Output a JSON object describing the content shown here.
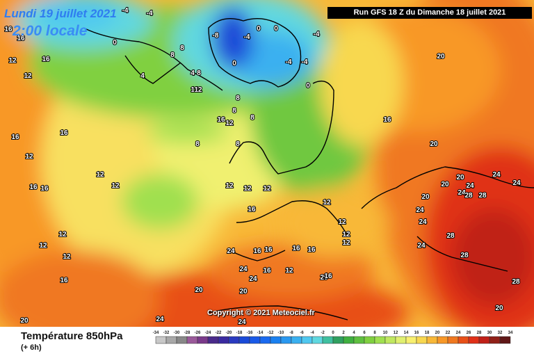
{
  "header": {
    "date": "Lundi 19 juillet 2021",
    "time": "2:00 locale",
    "run": "Run GFS 18 Z du Dimanche 18 juillet 2021"
  },
  "copyright": "Copyright © 2021 Meteociel.fr",
  "legend": {
    "title": "Température 850hPa",
    "subtitle": "(+ 6h)",
    "ticks": [
      "-34",
      "-32",
      "-30",
      "-28",
      "-26",
      "-24",
      "-22",
      "-20",
      "-18",
      "-16",
      "-14",
      "-12",
      "-10",
      "-8",
      "-6",
      "-4",
      "-2",
      "0",
      "2",
      "4",
      "6",
      "8",
      "10",
      "12",
      "14",
      "16",
      "18",
      "20",
      "22",
      "24",
      "26",
      "28",
      "30",
      "32",
      "34"
    ],
    "colors": [
      "#c8c8c8",
      "#a8a8a8",
      "#888888",
      "#9a5a9a",
      "#7a3a8a",
      "#4a2a8a",
      "#3a2aa0",
      "#2a3ac0",
      "#1a4ad8",
      "#1a5ae8",
      "#1a6af0",
      "#1a80f0",
      "#2a98f0",
      "#3ab0f0",
      "#50c8f0",
      "#60d8e0",
      "#40c0a0",
      "#30a060",
      "#40b040",
      "#60c040",
      "#80d040",
      "#a0e050",
      "#c0e860",
      "#e0f070",
      "#f8f070",
      "#f8d850",
      "#f8b838",
      "#f89828",
      "#f07820",
      "#e85018",
      "#e03018",
      "#c02018",
      "#902018",
      "#601818"
    ]
  },
  "temperature_labels": [
    {
      "text": "-4"
    },
    {
      "text": "-4"
    },
    {
      "text": "0"
    },
    {
      "text": "-8"
    },
    {
      "text": "-4"
    },
    {
      "text": "0"
    },
    {
      "text": "0"
    },
    {
      "text": "-4"
    },
    {
      "text": "-4"
    },
    {
      "text": "-4"
    },
    {
      "text": "0"
    },
    {
      "text": "0"
    },
    {
      "text": "16"
    },
    {
      "text": "16"
    },
    {
      "text": "12"
    },
    {
      "text": "16"
    },
    {
      "text": "12"
    },
    {
      "text": "4"
    },
    {
      "text": "8"
    },
    {
      "text": "8"
    },
    {
      "text": "4"
    },
    {
      "text": "8"
    },
    {
      "text": "12"
    },
    {
      "text": "8"
    },
    {
      "text": "12"
    },
    {
      "text": "8"
    },
    {
      "text": "8"
    },
    {
      "text": "16"
    },
    {
      "text": "12"
    },
    {
      "text": "16"
    },
    {
      "text": "16"
    },
    {
      "text": "16"
    },
    {
      "text": "12"
    },
    {
      "text": "16"
    },
    {
      "text": "16"
    },
    {
      "text": "12"
    },
    {
      "text": "12"
    },
    {
      "text": "8"
    },
    {
      "text": "8"
    },
    {
      "text": "12"
    },
    {
      "text": "12"
    },
    {
      "text": "12"
    },
    {
      "text": "12"
    },
    {
      "text": "12"
    },
    {
      "text": "12"
    },
    {
      "text": "12"
    },
    {
      "text": "12"
    },
    {
      "text": "16"
    },
    {
      "text": "16"
    },
    {
      "text": "16"
    },
    {
      "text": "12"
    },
    {
      "text": "20"
    },
    {
      "text": "20"
    },
    {
      "text": "20"
    },
    {
      "text": "20"
    },
    {
      "text": "20"
    },
    {
      "text": "24"
    },
    {
      "text": "24"
    },
    {
      "text": "24"
    },
    {
      "text": "28"
    },
    {
      "text": "24"
    },
    {
      "text": "24"
    },
    {
      "text": "24"
    },
    {
      "text": "28"
    },
    {
      "text": "28"
    },
    {
      "text": "28"
    },
    {
      "text": "20"
    },
    {
      "text": "20"
    },
    {
      "text": "24"
    },
    {
      "text": "24"
    },
    {
      "text": "24"
    },
    {
      "text": "24"
    },
    {
      "text": "20"
    },
    {
      "text": "20"
    },
    {
      "text": "24"
    },
    {
      "text": "16"
    },
    {
      "text": "16"
    },
    {
      "text": "16"
    },
    {
      "text": "16"
    },
    {
      "text": "16"
    },
    {
      "text": "12"
    },
    {
      "text": "12"
    },
    {
      "text": "20"
    },
    {
      "text": "24"
    },
    {
      "text": "28"
    }
  ]
}
